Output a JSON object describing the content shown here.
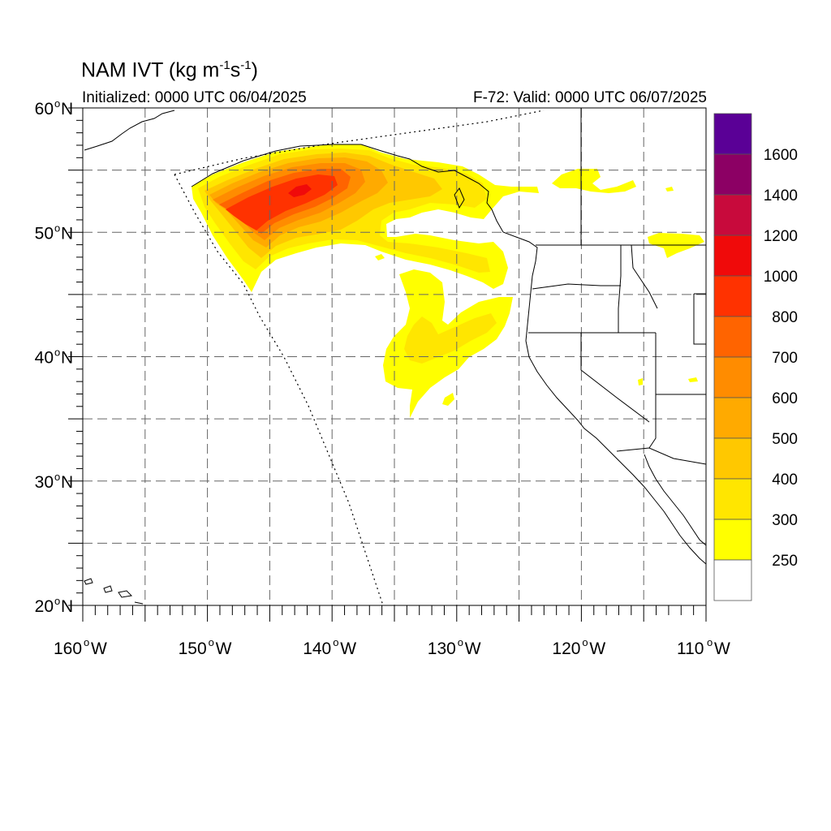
{
  "header": {
    "title_main": "NAM IVT (kg m",
    "title_exp1": "-1",
    "title_mid": "s",
    "title_exp2": "-1",
    "title_end": ")",
    "initialized": "Initialized: 0000 UTC 06/04/2025",
    "valid": "F-72: Valid: 0000 UTC 06/07/2025"
  },
  "map": {
    "lat_labels": [
      "60",
      "50",
      "40",
      "30",
      "20"
    ],
    "lat_suffix": "N",
    "lon_labels": [
      "160",
      "150",
      "140",
      "130",
      "120",
      "110"
    ],
    "lon_suffix": "W",
    "degree_symbol": "o"
  },
  "colorbar": {
    "labels": [
      "250",
      "300",
      "400",
      "500",
      "600",
      "700",
      "800",
      "1000",
      "1200",
      "1400",
      "1600"
    ],
    "colors": [
      "#ffffff",
      "#ffff00",
      "#ffe600",
      "#ffc800",
      "#ffaa00",
      "#ff8c00",
      "#ff6400",
      "#ff3200",
      "#f00a0a",
      "#c80a3c",
      "#8c0064",
      "#5a0096"
    ]
  }
}
